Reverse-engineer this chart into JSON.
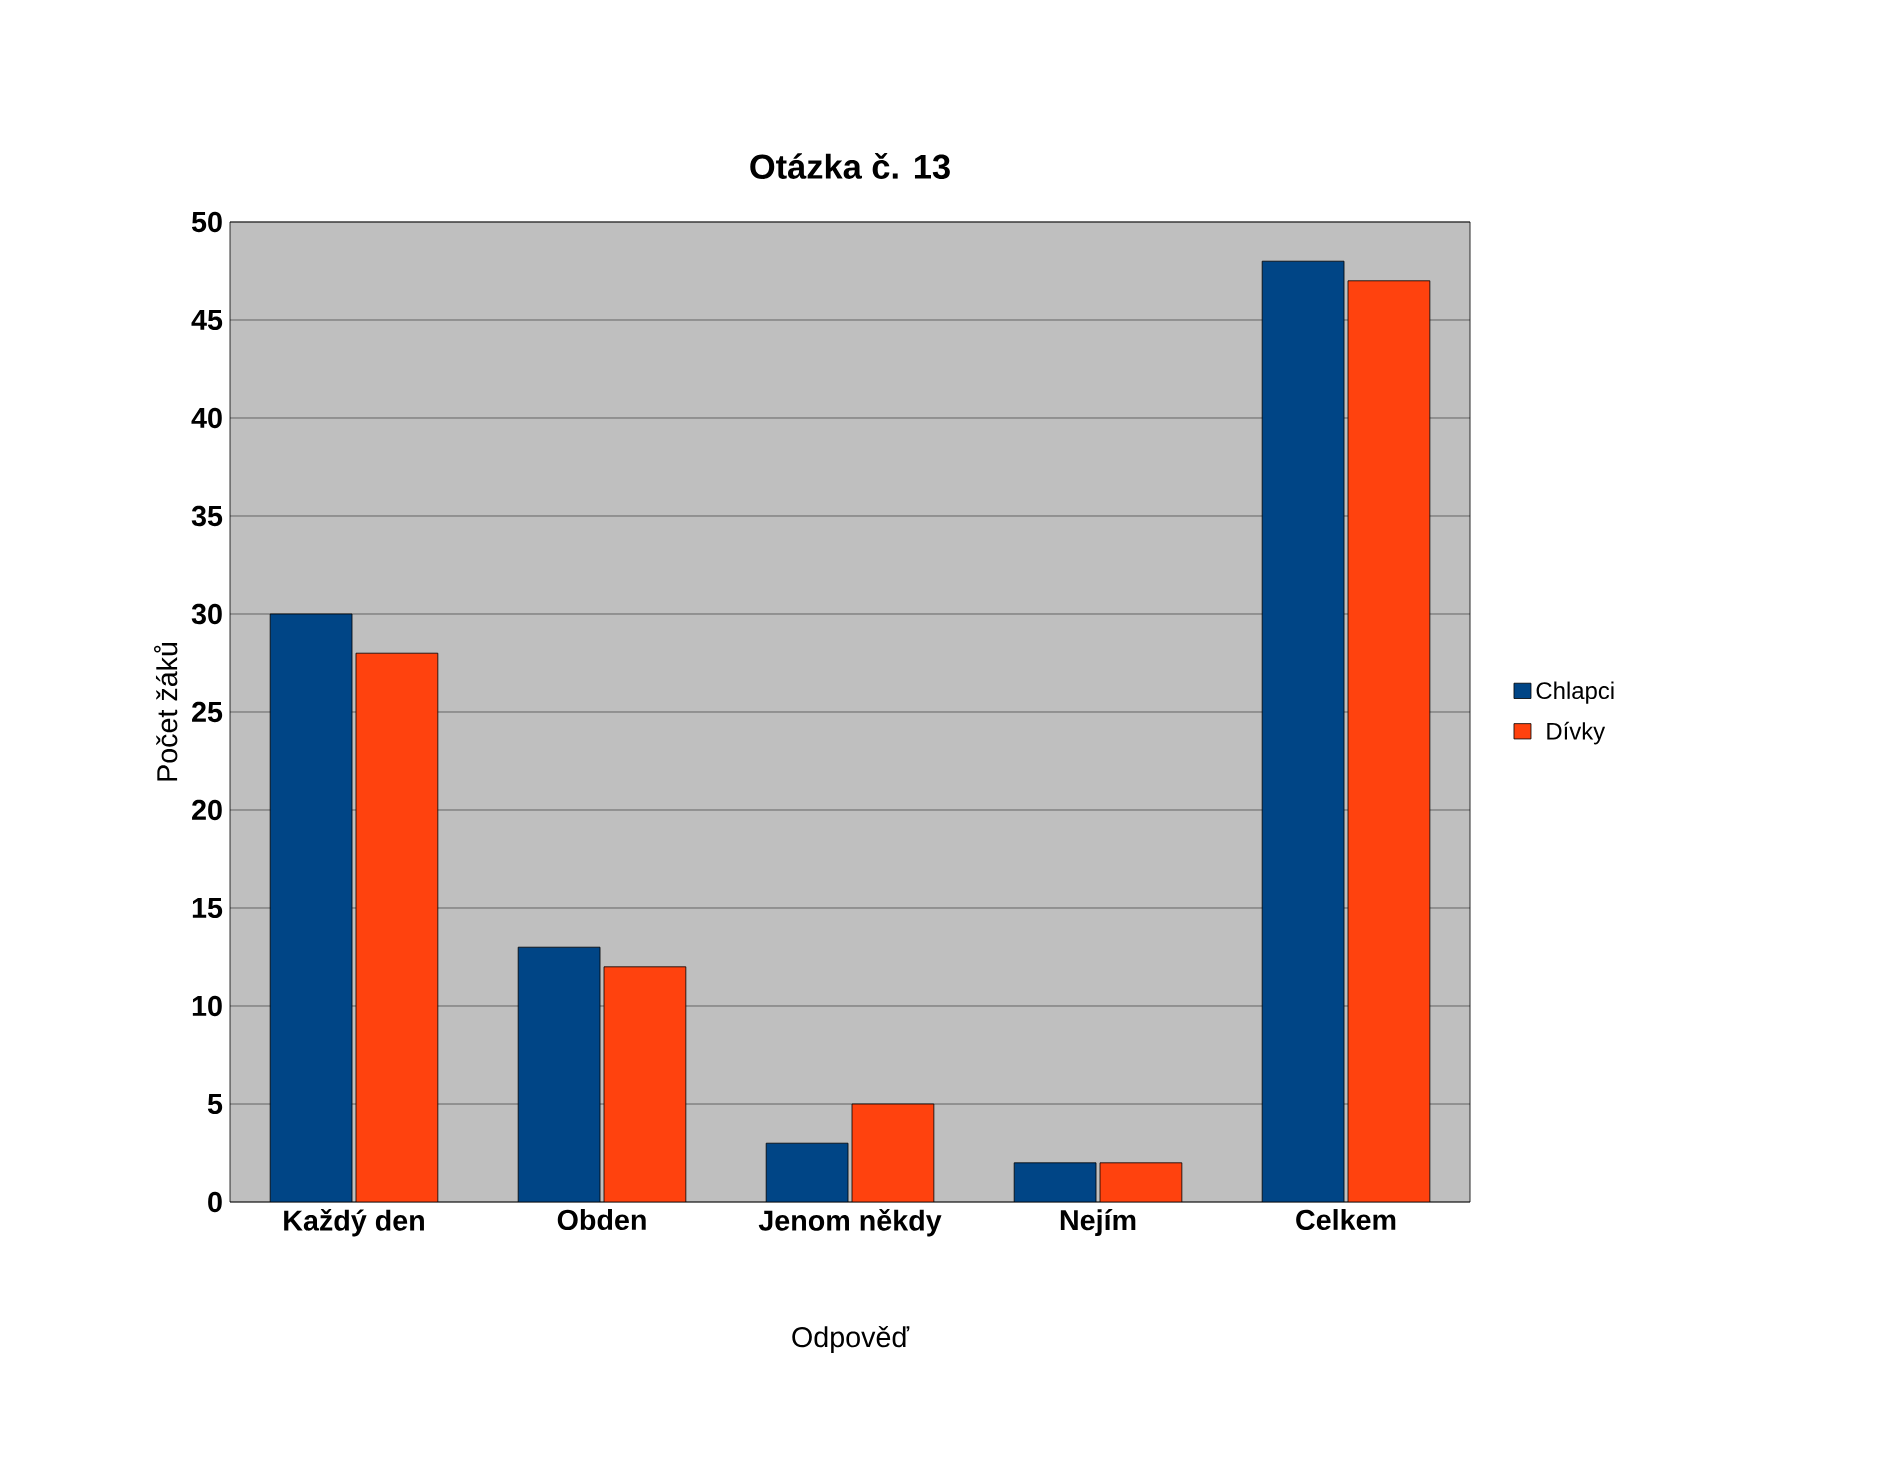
{
  "chart_data": {
    "type": "bar",
    "title": "Otázka č. 13",
    "xlabel": "Odpověď",
    "ylabel": "Počet žáků",
    "categories": [
      "Každý den",
      "Obden",
      "Jenom někdy",
      "Nejím",
      "Celkem"
    ],
    "series": [
      {
        "name": "Chlapci",
        "color": "#004586",
        "values": [
          30,
          13,
          3,
          2,
          48
        ]
      },
      {
        "name": "Dívky",
        "color": "#ff420e",
        "values": [
          28,
          12,
          5,
          2,
          47
        ]
      }
    ],
    "ylim": [
      0,
      50
    ],
    "yticks": [
      0,
      5,
      10,
      15,
      20,
      25,
      30,
      35,
      40,
      45,
      50
    ],
    "grid": "y",
    "legend": "right"
  }
}
